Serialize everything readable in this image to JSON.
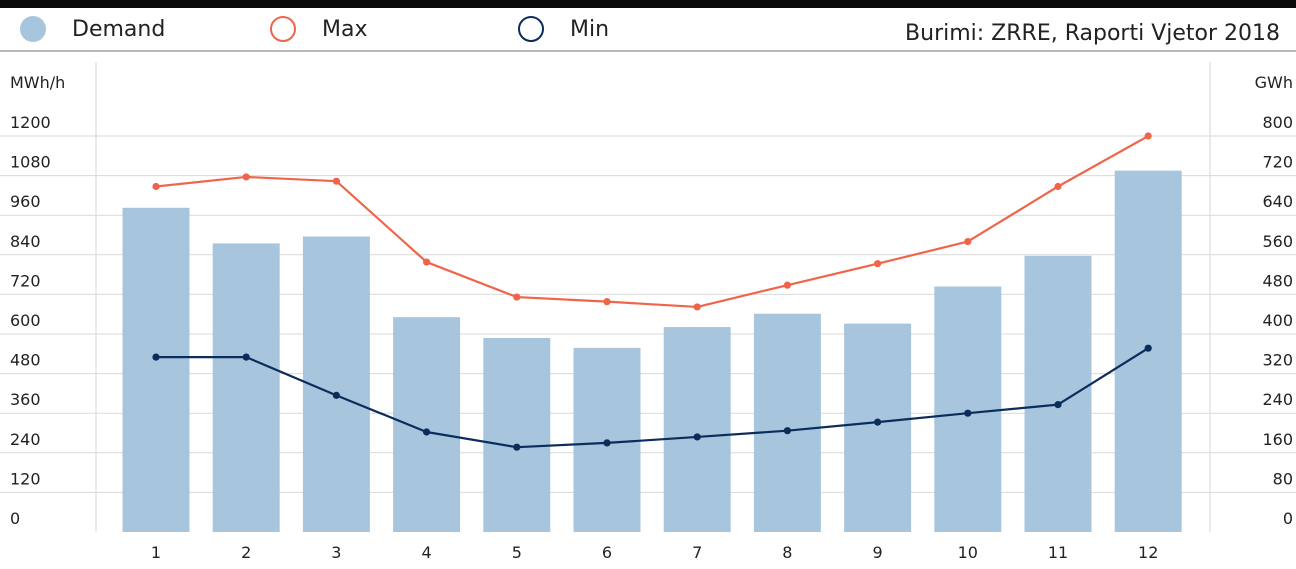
{
  "legend": {
    "demand": {
      "label": "Demand",
      "color": "#a7c6dd"
    },
    "max": {
      "label": "Max",
      "color": "#f0654a"
    },
    "min": {
      "label": "Min",
      "color": "#0b2d5b"
    }
  },
  "source": "Burimi: ZRRE, Raporti Vjetor 2018",
  "chart_data": {
    "type": "bar",
    "categories": [
      "1",
      "2",
      "3",
      "4",
      "5",
      "6",
      "7",
      "8",
      "9",
      "10",
      "11",
      "12"
    ],
    "left_axis": {
      "label": "MWh/h",
      "ticks": [
        0,
        120,
        240,
        360,
        480,
        600,
        720,
        840,
        960,
        1080,
        1200
      ],
      "ylim": [
        0,
        1200
      ]
    },
    "right_axis": {
      "label": "GWh",
      "ticks": [
        0,
        80,
        160,
        240,
        320,
        400,
        480,
        560,
        640,
        720,
        800
      ],
      "ylim": [
        0,
        800
      ]
    },
    "series": [
      {
        "name": "Demand",
        "type": "bar",
        "axis": "right",
        "color": "#a7c6dd",
        "values": [
          655,
          583,
          597,
          434,
          392,
          372,
          414,
          441,
          421,
          496,
          558,
          730
        ]
      },
      {
        "name": "Max",
        "type": "line",
        "axis": "left",
        "color": "#f0654a",
        "values": [
          1047,
          1076,
          1063,
          818,
          712,
          698,
          682,
          748,
          813,
          880,
          1047,
          1200
        ]
      },
      {
        "name": "Min",
        "type": "line",
        "axis": "left",
        "color": "#0b2d5b",
        "values": [
          530,
          530,
          414,
          303,
          257,
          270,
          288,
          307,
          333,
          360,
          386,
          557
        ]
      }
    ],
    "grid": true,
    "legend_position": "top"
  }
}
